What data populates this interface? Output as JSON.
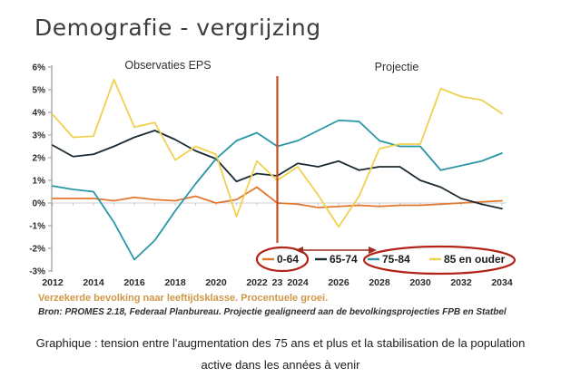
{
  "title": "Demografie - vergrijzing",
  "subtitle": "Verzekerde bevolking naar leeftijdsklasse. Procentuele groei.",
  "source": "Bron: PROMES 2.18, Federaal Planbureau. Projectie gealigneerd aan de bevolkingsprojecties FPB en Statbel",
  "caption": "Graphique : tension entre l'augmentation des 75 ans et plus et la stabilisation de la population active dans les années à venir",
  "chart": {
    "annotations": {
      "left": "Observaties EPS",
      "right": "Projectie"
    },
    "y_ticks": [
      {
        "label": "6%",
        "value": 6
      },
      {
        "label": "5%",
        "value": 5
      },
      {
        "label": "4%",
        "value": 4
      },
      {
        "label": "3%",
        "value": 3
      },
      {
        "label": "2%",
        "value": 2
      },
      {
        "label": "1%",
        "value": 1
      },
      {
        "label": "0%",
        "value": 0
      },
      {
        "label": "-1%",
        "value": -1
      },
      {
        "label": "-2%",
        "value": -2
      },
      {
        "label": "-3%",
        "value": -3
      }
    ],
    "x_ticks": [
      {
        "label": "2012",
        "year": 2012
      },
      {
        "label": "2014",
        "year": 2014
      },
      {
        "label": "2016",
        "year": 2016
      },
      {
        "label": "2018",
        "year": 2018
      },
      {
        "label": "2020",
        "year": 2020
      },
      {
        "label": "2022",
        "year": 2022
      },
      {
        "label": "23",
        "year": 2023
      },
      {
        "label": "2024",
        "year": 2024
      },
      {
        "label": "2026",
        "year": 2026
      },
      {
        "label": "2028",
        "year": 2028
      },
      {
        "label": "2030",
        "year": 2030
      },
      {
        "label": "2032",
        "year": 2032
      },
      {
        "label": "2034",
        "year": 2034
      }
    ]
  },
  "chart_data": {
    "type": "line",
    "title": "Verzekerde bevolking naar leeftijdsklasse. Procentuele groei.",
    "y_unit": "%",
    "ylim": [
      -3,
      6
    ],
    "xlim": [
      2012,
      2034
    ],
    "grid": "zero-line-only",
    "legend_position": "bottom",
    "divider_year": 2023,
    "regions": [
      {
        "label": "Observaties EPS",
        "range": [
          2012,
          2023
        ]
      },
      {
        "label": "Projectie",
        "range": [
          2023,
          2034
        ]
      }
    ],
    "x": [
      2012,
      2013,
      2014,
      2015,
      2016,
      2017,
      2018,
      2019,
      2020,
      2021,
      2022,
      2023,
      2024,
      2025,
      2026,
      2027,
      2028,
      2029,
      2030,
      2031,
      2032,
      2033,
      2034
    ],
    "series": [
      {
        "name": "0-64",
        "color": "#e2772e",
        "values": [
          0.2,
          0.2,
          0.2,
          0.1,
          0.25,
          0.15,
          0.1,
          0.3,
          0,
          0.15,
          0.7,
          0,
          -0.05,
          -0.2,
          -0.15,
          -0.1,
          -0.15,
          -0.1,
          -0.1,
          -0.05,
          0,
          0.05,
          0.1
        ]
      },
      {
        "name": "65-74",
        "color": "#1c2b33",
        "values": [
          2.55,
          2.05,
          2.15,
          2.5,
          2.9,
          3.2,
          2.8,
          2.3,
          1.95,
          0.95,
          1.3,
          1.2,
          1.75,
          1.6,
          1.85,
          1.45,
          1.6,
          1.6,
          1.0,
          0.7,
          0.2,
          -0.05,
          -0.25
        ]
      },
      {
        "name": "75-84",
        "color": "#2a96a5",
        "values": [
          0.75,
          0.6,
          0.5,
          -0.85,
          -2.5,
          -1.65,
          -0.35,
          0.85,
          1.95,
          2.75,
          3.1,
          2.5,
          2.75,
          3.2,
          3.65,
          3.6,
          2.75,
          2.5,
          2.5,
          1.45,
          1.65,
          1.85,
          2.2
        ]
      },
      {
        "name": "85 en ouder",
        "color": "#f0d14f",
        "values": [
          3.9,
          2.9,
          2.95,
          5.45,
          3.35,
          3.55,
          1.9,
          2.5,
          2.15,
          -0.6,
          1.85,
          1.0,
          1.6,
          0.35,
          -1.05,
          0.3,
          2.4,
          2.6,
          2.6,
          5.05,
          4.7,
          4.55,
          3.95
        ]
      }
    ],
    "highlights": {
      "ellipse_around": [
        "0-64"
      ],
      "ellipse_around_group": [
        "75-84",
        "85 en ouder"
      ],
      "arrow_between_ellipses": true
    },
    "colors": {
      "divider": "#c44d21",
      "highlight": "#b32418",
      "arrow": "#9e2c1e"
    }
  },
  "legend": {
    "items": [
      "0-64",
      "65-74",
      "75-84",
      "85 en ouder"
    ]
  }
}
